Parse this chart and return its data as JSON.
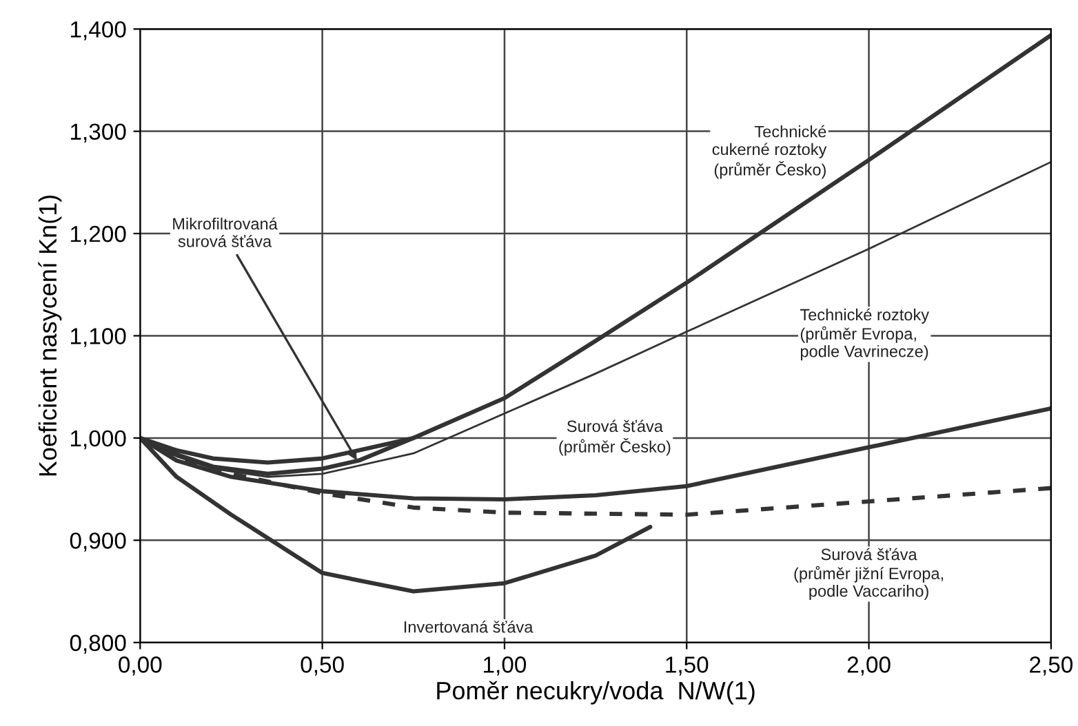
{
  "chart_data": {
    "type": "line",
    "xlabel": "Poměr necukry/voda  N/W(1)",
    "ylabel": "Koeficient nasycení Kn(1)",
    "xlim": [
      0,
      2.5
    ],
    "ylim": [
      0.8,
      1.4
    ],
    "xticks": [
      {
        "value": 0,
        "label": "0,00"
      },
      {
        "value": 0.5,
        "label": "0,50"
      },
      {
        "value": 1,
        "label": "1,00"
      },
      {
        "value": 1.5,
        "label": "1,50"
      },
      {
        "value": 2,
        "label": "2,00"
      },
      {
        "value": 2.5,
        "label": "2,50"
      }
    ],
    "yticks": [
      {
        "value": 0.8,
        "label": "0,800"
      },
      {
        "value": 0.9,
        "label": "0,900"
      },
      {
        "value": 1.0,
        "label": "1,000"
      },
      {
        "value": 1.1,
        "label": "1,100"
      },
      {
        "value": 1.2,
        "label": "1,200"
      },
      {
        "value": 1.3,
        "label": "1,300"
      },
      {
        "value": 1.4,
        "label": "1,400"
      }
    ],
    "grid": true,
    "legend": false,
    "marker": "none",
    "series": [
      {
        "color": "#333333",
        "line_style": "solid",
        "x": [
          0,
          0.1,
          0.2,
          0.35,
          0.5,
          0.75,
          1.0,
          1.25,
          1.5,
          2.0,
          2.5
        ],
        "values": [
          1.0,
          0.988,
          0.98,
          0.976,
          0.98,
          1.0,
          1.039,
          1.095,
          1.152,
          1.272,
          1.394
        ]
      },
      {
        "color": "#333333",
        "line_style": "solid",
        "x": [
          0,
          0.1,
          0.2,
          0.35,
          0.5,
          0.75,
          1.0,
          1.25,
          1.5,
          2.0,
          2.5
        ],
        "values": [
          1.0,
          0.982,
          0.97,
          0.962,
          0.965,
          0.985,
          1.024,
          1.063,
          1.104,
          1.185,
          1.27
        ]
      },
      {
        "color": "#333333",
        "line_style": "solid",
        "x": [
          0,
          0.1,
          0.2,
          0.35,
          0.5,
          0.6,
          0.75
        ],
        "values": [
          1.0,
          0.984,
          0.972,
          0.965,
          0.97,
          0.978,
          1.0
        ]
      },
      {
        "color": "#333333",
        "line_style": "solid",
        "x": [
          0,
          0.1,
          0.25,
          0.5,
          0.75,
          1.0,
          1.25,
          1.5,
          2.0,
          2.5
        ],
        "values": [
          1.0,
          0.978,
          0.962,
          0.948,
          0.941,
          0.94,
          0.944,
          0.953,
          0.991,
          1.029
        ]
      },
      {
        "color": "#333333",
        "line_style": "dashed",
        "x": [
          0,
          0.1,
          0.25,
          0.5,
          0.75,
          1.0,
          1.5,
          2.0,
          2.5
        ],
        "values": [
          1.0,
          0.98,
          0.965,
          0.946,
          0.932,
          0.927,
          0.925,
          0.938,
          0.951
        ]
      },
      {
        "color": "#333333",
        "line_style": "solid",
        "x": [
          0,
          0.1,
          0.25,
          0.5,
          0.75,
          1.0,
          1.25,
          1.4
        ],
        "values": [
          1.0,
          0.962,
          0.925,
          0.868,
          0.85,
          0.858,
          0.885,
          0.913
        ]
      }
    ],
    "annotations": [
      {
        "text": "Technické\ncukerné roztoky\n(průměr Česko)",
        "x": 1.9,
        "y": 1.248
      },
      {
        "text": "Mikrofiltrovaná\nsurová šťáva",
        "x": 0.6,
        "y": 0.975
      },
      {
        "text": "Technické roztoky\n(průměr Evropa,\npodle Vavrinecze)",
        "x": 1.8,
        "y": 1.153
      },
      {
        "text": "Surová šťáva\n(průměr Česko)",
        "x": 1.25,
        "y": 0.944
      },
      {
        "text": "Surová šťáva\n(průměr jižní Evropa,\npodle Vaccariho)",
        "x": 2.0,
        "y": 0.938
      },
      {
        "text": "Invertovaná šťáva",
        "x": 0.9,
        "y": 0.855
      }
    ]
  }
}
